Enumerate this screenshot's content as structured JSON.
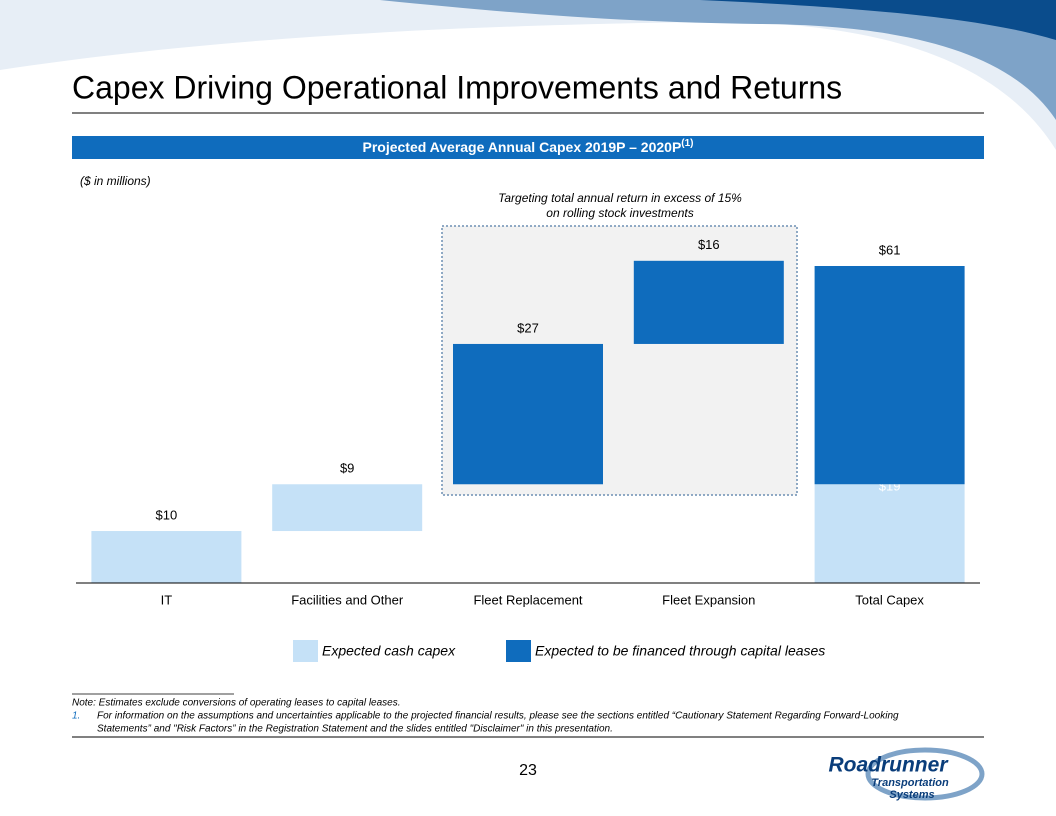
{
  "header": {
    "title": "Capex Driving Operational Improvements and Returns"
  },
  "chart_data": {
    "type": "waterfall",
    "title": "Projected Average Annual Capex 2019P – 2020P",
    "title_superscript": "(1)",
    "unit_note": "($ in millions)",
    "annotation": [
      "Targeting total annual return in excess of 15%",
      "on rolling stock investments"
    ],
    "categories": [
      "IT",
      "Facilities and Other",
      "Fleet Replacement",
      "Fleet Expansion",
      "Total Capex"
    ],
    "series": [
      {
        "name": "Expected cash capex",
        "color": "#c5e1f7",
        "values": [
          10,
          9,
          null,
          null,
          19
        ],
        "value_labels": [
          "$10",
          "$9",
          null,
          null,
          "$19"
        ]
      },
      {
        "name": "Expected to be financed through capital leases",
        "color": "#0f6cbd",
        "values": [
          null,
          null,
          27,
          16,
          42
        ],
        "value_labels": [
          null,
          null,
          "$27",
          "$16",
          null
        ]
      }
    ],
    "total": {
      "value": 61,
      "label": "$61"
    },
    "legend": "bottom"
  },
  "footer": {
    "note": "Note: Estimates exclude conversions of operating leases to capital leases.",
    "footnote_number": "1.",
    "footnote_lines": [
      "For information on the assumptions and uncertainties applicable to the projected financial results, please see the sections entitled “Cautionary Statement Regarding Forward-Looking",
      "Statements” and \"Risk Factors” in the Registration Statement and the slides entitled \"Disclaimer\" in this presentation."
    ],
    "page_number": "23",
    "logo": [
      "Roadrunner",
      "Transportation",
      "Systems"
    ]
  }
}
